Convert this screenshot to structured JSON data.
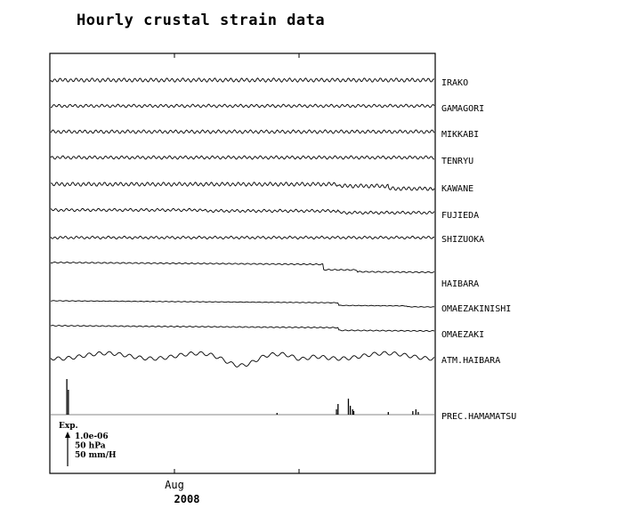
{
  "chart_data": {
    "type": "line",
    "title": "Hourly crustal strain data",
    "x_axis": {
      "ticks": [
        {
          "label": "Aug",
          "year": "2008"
        }
      ],
      "range": [
        "2008-07",
        "2008-09"
      ]
    },
    "legend": {
      "heading": "Exp.",
      "entries": [
        "1.0e-06",
        "50 hPa",
        "50 mm/H"
      ],
      "placement": "bottom-left"
    },
    "series": [
      {
        "name": "IRAKO",
        "kind": "strain",
        "shape": "wiggle",
        "wobble": 1.8,
        "events": []
      },
      {
        "name": "GAMAGORI",
        "kind": "strain",
        "shape": "wiggle",
        "wobble": 1.4,
        "events": []
      },
      {
        "name": "MIKKABI",
        "kind": "strain",
        "shape": "wiggle",
        "wobble": 1.6,
        "events": []
      },
      {
        "name": "TENRYU",
        "kind": "strain",
        "shape": "wiggle",
        "wobble": 1.5,
        "events": []
      },
      {
        "name": "KAWANE",
        "kind": "strain",
        "shape": "wiggle",
        "wobble": 1.8,
        "events": [
          {
            "t": 0.75,
            "dy": 2
          },
          {
            "t": 0.88,
            "dy": 3
          }
        ]
      },
      {
        "name": "FUJIEDA",
        "kind": "strain",
        "shape": "wiggle",
        "wobble": 1.3,
        "events": [
          {
            "t": 0.4,
            "dy": 1
          },
          {
            "t": 0.75,
            "dy": 2
          }
        ]
      },
      {
        "name": "SHIZUOKA",
        "kind": "strain",
        "shape": "wiggle",
        "wobble": 1.2,
        "events": []
      },
      {
        "name": "HAIBARA",
        "kind": "strain",
        "shape": "trend",
        "wobble": 0.6,
        "events": [
          {
            "t": 0.71,
            "dy": 6
          },
          {
            "t": 0.8,
            "dy": 2
          }
        ]
      },
      {
        "name": "OMAEZAKINISHI",
        "kind": "strain",
        "shape": "trend",
        "wobble": 0.3,
        "events": [
          {
            "t": 0.75,
            "dy": 3
          },
          {
            "t": 0.93,
            "dy": 1
          }
        ]
      },
      {
        "name": "OMAEZAKI",
        "kind": "strain",
        "shape": "trend",
        "wobble": 0.5,
        "events": [
          {
            "t": 0.75,
            "dy": 3
          }
        ]
      },
      {
        "name": "ATM.HAIBARA",
        "kind": "pressure",
        "shape": "pressure",
        "wobble": 0.8,
        "events": []
      },
      {
        "name": "PREC.HAMAMATSU",
        "kind": "precipitation",
        "shape": "bars",
        "bars": [
          {
            "t": 0.042,
            "h": 40
          },
          {
            "t": 0.046,
            "h": 28
          },
          {
            "t": 0.749,
            "h": 12
          },
          {
            "t": 0.745,
            "h": 6
          },
          {
            "t": 0.776,
            "h": 18
          },
          {
            "t": 0.781,
            "h": 10
          },
          {
            "t": 0.787,
            "h": 6
          },
          {
            "t": 0.79,
            "h": 4
          },
          {
            "t": 0.88,
            "h": 3
          },
          {
            "t": 0.944,
            "h": 4
          },
          {
            "t": 0.952,
            "h": 6
          },
          {
            "t": 0.958,
            "h": 3
          },
          {
            "t": 0.59,
            "h": 2
          }
        ]
      }
    ]
  }
}
